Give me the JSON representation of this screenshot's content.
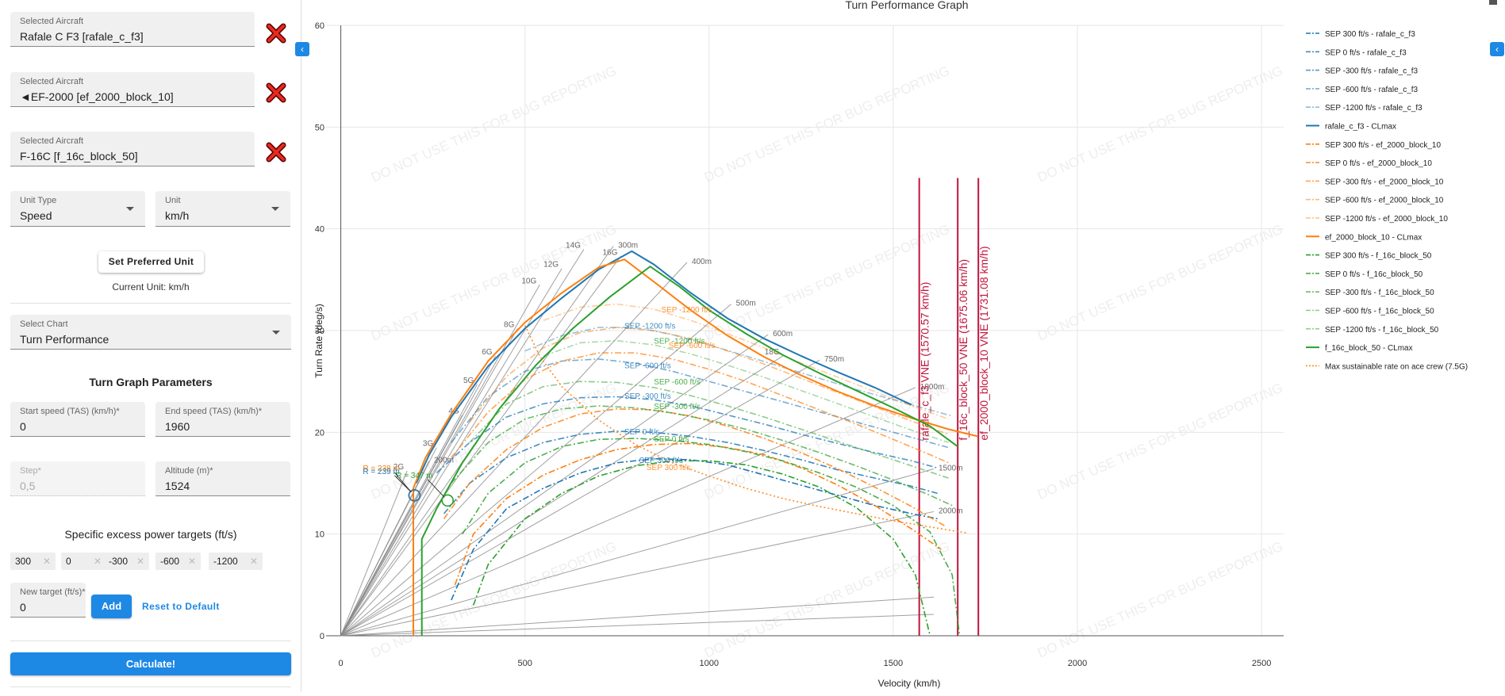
{
  "sidebar": {
    "aircraft": [
      {
        "label": "Selected Aircraft",
        "value": "Rafale C F3 [rafale_c_f3]"
      },
      {
        "label": "Selected Aircraft",
        "value": "◄EF-2000 [ef_2000_block_10]"
      },
      {
        "label": "Selected Aircraft",
        "value": "F-16C [f_16c_block_50]"
      }
    ],
    "unit_type": {
      "label": "Unit Type",
      "value": "Speed"
    },
    "unit": {
      "label": "Unit",
      "value": "km/h"
    },
    "set_preferred_label": "Set Preferred Unit",
    "current_unit": "Current Unit: km/h",
    "select_chart": {
      "label": "Select Chart",
      "value": "Turn Performance"
    },
    "params_title": "Turn Graph Parameters",
    "start_speed": {
      "label": "Start speed (TAS) (km/h)*",
      "value": "0"
    },
    "end_speed": {
      "label": "End speed (TAS) (km/h)*",
      "value": "1960"
    },
    "step": {
      "label": "Step*",
      "value": "0,5"
    },
    "altitude": {
      "label": "Altitude (m)*",
      "value": "1524"
    },
    "sep_title": "Specific excess power targets (ft/s)",
    "sep_targets": [
      "300",
      "0",
      "-300",
      "-600",
      "-1200"
    ],
    "new_target": {
      "label": "New target (ft/s)*",
      "value": "0"
    },
    "add_label": "Add",
    "reset_label": "Reset to Default",
    "calculate_label": "Calculate!"
  },
  "chart_data": {
    "type": "line",
    "title": "Turn Performance Graph",
    "xlabel": "Velocity (km/h)",
    "ylabel": "Turn Rate (deg/s)",
    "xlim": [
      -40,
      2560
    ],
    "ylim": [
      0,
      60
    ],
    "x_ticks": [
      0,
      500,
      1000,
      1500,
      2000,
      2500
    ],
    "y_ticks": [
      0,
      10,
      20,
      30,
      40,
      50,
      60
    ],
    "grid": true,
    "legend_position": "right",
    "watermark": "DO NOT USE THIS FOR BUG REPORTING",
    "colors": {
      "rafale": "#1f77b4",
      "ef2000": "#ff7f0e",
      "f16": "#2ca02c",
      "vne": "#c0143c",
      "grid": "#888888"
    },
    "g_lines": [
      {
        "label": "2G",
        "end": [
          180,
          16.2
        ]
      },
      {
        "label": "3G",
        "end": [
          260,
          18.5
        ]
      },
      {
        "label": "4G",
        "end": [
          330,
          21.7
        ]
      },
      {
        "label": "5G",
        "end": [
          370,
          24.7
        ]
      },
      {
        "label": "6G",
        "end": [
          420,
          27.5
        ]
      },
      {
        "label": "8G",
        "end": [
          480,
          30.2
        ]
      },
      {
        "label": "10G",
        "end": [
          540,
          34.5
        ]
      },
      {
        "label": "12G",
        "end": [
          600,
          36.1
        ]
      },
      {
        "label": "14G",
        "end": [
          660,
          38.0
        ]
      },
      {
        "label": "16G",
        "end": [
          760,
          37.3
        ]
      },
      {
        "label": "18G",
        "end": [
          1200,
          27.5
        ]
      }
    ],
    "radius_lines": [
      {
        "label": "200m",
        "end": [
          240,
          17.2
        ]
      },
      {
        "label": "300m",
        "end": [
          740,
          38.3
        ]
      },
      {
        "label": "400m",
        "end": [
          940,
          36.7
        ]
      },
      {
        "label": "500m",
        "end": [
          1060,
          32.6
        ]
      },
      {
        "label": "600m",
        "end": [
          1160,
          29.6
        ]
      },
      {
        "label": "750m",
        "end": [
          1300,
          27.1
        ]
      },
      {
        "label": "1000m",
        "end": [
          1560,
          24.4
        ]
      },
      {
        "label": "1500m",
        "end": [
          1610,
          16.4
        ]
      },
      {
        "label": "2000m",
        "end": [
          1610,
          12.2
        ]
      }
    ],
    "extra_lines_end_y": [
      3.8,
      2.1
    ],
    "extra_lines_end_x": 1610,
    "series": [
      {
        "name": "SEP 300 ft/s - rafale_c_f3",
        "group": "rafale",
        "dash": "dashdot",
        "opacity": 1.0,
        "x": [
          300,
          360,
          450,
          550,
          650,
          750,
          850,
          950,
          1050,
          1150,
          1250,
          1350,
          1450,
          1550,
          1620
        ],
        "y": [
          3.5,
          8.5,
          12.5,
          14.5,
          16.0,
          17.0,
          17.4,
          17.3,
          16.8,
          15.8,
          14.8,
          13.8,
          12.8,
          12.0,
          11.5
        ]
      },
      {
        "name": "SEP 0 ft/s - rafale_c_f3",
        "group": "rafale",
        "dash": "dashdot",
        "opacity": 0.85,
        "x": [
          280,
          350,
          450,
          550,
          650,
          750,
          850,
          950,
          1050,
          1150,
          1250,
          1350,
          1450,
          1550,
          1620
        ],
        "y": [
          12.0,
          15.0,
          17.5,
          19.0,
          19.8,
          20.1,
          20.0,
          19.6,
          19.0,
          18.2,
          17.3,
          16.3,
          15.5,
          14.7,
          14.0
        ]
      },
      {
        "name": "SEP -300 ft/s - rafale_c_f3",
        "group": "rafale",
        "dash": "dashdot",
        "opacity": 0.75,
        "x": [
          260,
          350,
          450,
          550,
          650,
          750,
          850,
          950,
          1050,
          1150,
          1250,
          1350,
          1450,
          1550,
          1620
        ],
        "y": [
          16.0,
          19.0,
          21.5,
          22.8,
          23.4,
          23.5,
          23.2,
          22.6,
          21.7,
          20.8,
          19.8,
          18.9,
          18.0,
          17.2,
          16.5
        ]
      },
      {
        "name": "SEP -600 ft/s - rafale_c_f3",
        "group": "rafale",
        "dash": "dashdot",
        "opacity": 0.6,
        "x": [
          300,
          400,
          500,
          600,
          700,
          800,
          900,
          1000,
          1100,
          1200,
          1300,
          1400,
          1500,
          1600,
          1650
        ],
        "y": [
          19.0,
          23.5,
          26.0,
          27.0,
          27.2,
          26.8,
          26.0,
          25.0,
          24.0,
          23.0,
          22.0,
          21.0,
          20.0,
          19.0,
          18.5
        ]
      },
      {
        "name": "SEP -1200 ft/s - rafale_c_f3",
        "group": "rafale",
        "dash": "dashdot",
        "opacity": 0.45,
        "x": [
          500,
          600,
          700,
          800,
          900,
          1000,
          1100,
          1200,
          1300,
          1400,
          1500,
          1600,
          1660
        ],
        "y": [
          28.0,
          29.5,
          30.3,
          30.3,
          29.6,
          28.6,
          27.5,
          26.4,
          25.3,
          24.2,
          23.2,
          22.2,
          21.6
        ]
      },
      {
        "name": "rafale_c_f3 - CLmax",
        "group": "rafale",
        "dash": "solid",
        "opacity": 1.0,
        "x": [
          205,
          240,
          300,
          400,
          500,
          600,
          700,
          790,
          850,
          950,
          1050,
          1150,
          1250,
          1350,
          1450,
          1550
        ],
        "y": [
          15.0,
          17.8,
          21.5,
          26.5,
          30.2,
          33.2,
          36.0,
          37.8,
          36.5,
          33.7,
          31.2,
          29.2,
          27.5,
          25.9,
          24.4,
          22.7
        ]
      },
      {
        "name": "SEP 300 ft/s - ef_2000_block_10",
        "group": "ef2000",
        "dash": "dashdot",
        "opacity": 1.0,
        "x": [
          310,
          360,
          450,
          550,
          650,
          750,
          850,
          950,
          1050,
          1150,
          1250,
          1350,
          1450,
          1550,
          1630
        ],
        "y": [
          5.0,
          10.0,
          13.5,
          15.8,
          17.3,
          18.3,
          18.8,
          18.9,
          18.5,
          17.8,
          16.5,
          14.8,
          12.8,
          10.5,
          8.5
        ]
      },
      {
        "name": "SEP 0 ft/s - ef_2000_block_10",
        "group": "ef2000",
        "dash": "dashdot",
        "opacity": 0.85,
        "x": [
          280,
          350,
          450,
          550,
          650,
          750,
          850,
          950,
          1050,
          1150,
          1250,
          1350,
          1450,
          1550,
          1640
        ],
        "y": [
          11.5,
          15.0,
          18.3,
          20.5,
          21.8,
          22.3,
          22.2,
          21.6,
          20.6,
          19.4,
          18.0,
          16.4,
          14.6,
          12.7,
          10.8
        ]
      },
      {
        "name": "SEP -300 ft/s - ef_2000_block_10",
        "group": "ef2000",
        "dash": "dashdot",
        "opacity": 0.7,
        "x": [
          300,
          400,
          500,
          600,
          700,
          800,
          900,
          1000,
          1100,
          1200,
          1300,
          1400,
          1500,
          1600,
          1650
        ],
        "y": [
          17.5,
          22.0,
          25.2,
          27.0,
          27.8,
          27.8,
          27.2,
          26.2,
          25.0,
          23.6,
          22.2,
          20.8,
          19.3,
          17.8,
          17.0
        ]
      },
      {
        "name": "SEP -600 ft/s - ef_2000_block_10",
        "group": "ef2000",
        "dash": "dashdot",
        "opacity": 0.55,
        "x": [
          350,
          450,
          550,
          650,
          750,
          850,
          950,
          1050,
          1150,
          1250,
          1350,
          1450,
          1550,
          1650
        ],
        "y": [
          21.0,
          25.5,
          28.3,
          29.8,
          30.3,
          30.0,
          29.2,
          28.0,
          26.7,
          25.3,
          23.9,
          22.5,
          21.1,
          19.8
        ]
      },
      {
        "name": "SEP -1200 ft/s - ef_2000_block_10",
        "group": "ef2000",
        "dash": "dashdot",
        "opacity": 0.4,
        "x": [
          550,
          650,
          750,
          850,
          950,
          1050,
          1150,
          1250,
          1350,
          1450,
          1550,
          1650
        ],
        "y": [
          31.0,
          32.3,
          32.6,
          32.1,
          31.0,
          29.7,
          28.3,
          26.8,
          25.4,
          24.0,
          22.6,
          21.3
        ]
      },
      {
        "name": "ef_2000_block_10 - CLmax",
        "group": "ef2000",
        "dash": "solid",
        "opacity": 1.0,
        "x": [
          197,
          197,
          230,
          300,
          400,
          500,
          600,
          700,
          770,
          850,
          950,
          1050,
          1150,
          1250,
          1350,
          1450,
          1550,
          1650,
          1730
        ],
        "y": [
          0,
          14.5,
          17.5,
          21.8,
          27.0,
          30.8,
          33.7,
          36.2,
          37.0,
          34.8,
          32.0,
          29.5,
          27.4,
          25.6,
          24.0,
          22.6,
          21.4,
          20.3,
          19.6
        ]
      },
      {
        "name": "SEP 300 ft/s - f_16c_block_50",
        "group": "f16",
        "dash": "dashdot",
        "opacity": 1.0,
        "x": [
          360,
          400,
          500,
          600,
          700,
          800,
          900,
          1000,
          1100,
          1200,
          1300,
          1400,
          1500,
          1560,
          1600
        ],
        "y": [
          3.0,
          7.0,
          11.5,
          14.0,
          15.7,
          16.7,
          17.2,
          17.2,
          16.8,
          15.9,
          14.6,
          12.6,
          9.5,
          6.0,
          0
        ]
      },
      {
        "name": "SEP 0 ft/s - f_16c_block_50",
        "group": "f16",
        "dash": "dashdot",
        "opacity": 0.85,
        "x": [
          330,
          400,
          500,
          600,
          700,
          800,
          900,
          1000,
          1100,
          1200,
          1300,
          1400,
          1500,
          1600,
          1660,
          1680
        ],
        "y": [
          10.0,
          14.0,
          17.0,
          18.6,
          19.3,
          19.4,
          19.2,
          18.8,
          18.1,
          17.2,
          16.0,
          14.6,
          12.8,
          10.2,
          6.0,
          0
        ]
      },
      {
        "name": "SEP -300 ft/s - f_16c_block_50",
        "group": "f16",
        "dash": "dashdot",
        "opacity": 0.7,
        "x": [
          300,
          400,
          500,
          600,
          700,
          800,
          900,
          1000,
          1100,
          1200,
          1300,
          1400,
          1500,
          1600,
          1660
        ],
        "y": [
          15.0,
          19.0,
          21.3,
          22.3,
          22.6,
          22.4,
          21.9,
          21.2,
          20.3,
          19.2,
          18.0,
          16.7,
          15.3,
          13.8,
          12.8
        ]
      },
      {
        "name": "SEP -600 ft/s - f_16c_block_50",
        "group": "f16",
        "dash": "dashdot",
        "opacity": 0.55,
        "x": [
          350,
          450,
          550,
          650,
          750,
          850,
          950,
          1050,
          1150,
          1250,
          1350,
          1450,
          1550,
          1650
        ],
        "y": [
          19.0,
          22.8,
          24.5,
          25.0,
          24.9,
          24.4,
          23.6,
          22.6,
          21.5,
          20.3,
          19.1,
          17.9,
          16.7,
          15.5
        ]
      },
      {
        "name": "SEP -1200 ft/s - f_16c_block_50",
        "group": "f16",
        "dash": "dashdot",
        "opacity": 0.4,
        "x": [
          550,
          650,
          750,
          850,
          950,
          1050,
          1150,
          1250,
          1350,
          1450,
          1550,
          1650
        ],
        "y": [
          27.5,
          28.8,
          29.0,
          28.6,
          27.7,
          26.6,
          25.4,
          24.1,
          22.8,
          21.5,
          20.2,
          19.0
        ]
      },
      {
        "name": "f_16c_block_50 - CLmax",
        "group": "f16",
        "dash": "solid",
        "opacity": 1.0,
        "x": [
          220,
          220,
          260,
          330,
          430,
          530,
          630,
          730,
          840,
          920,
          1000,
          1100,
          1200,
          1300,
          1400,
          1500,
          1600,
          1675
        ],
        "y": [
          0,
          9.5,
          12.5,
          17.0,
          22.3,
          26.6,
          30.2,
          33.3,
          36.3,
          34.3,
          32.0,
          29.7,
          27.6,
          25.8,
          24.1,
          22.4,
          20.6,
          18.6
        ]
      },
      {
        "name": "Max sustainable rate on ace crew (7.5G)",
        "group": "ef2000",
        "dash": "dotted",
        "opacity": 0.9,
        "x": [
          500,
          540,
          600,
          700,
          800,
          900,
          1000,
          1100,
          1200,
          1300,
          1400,
          1500,
          1600,
          1700
        ],
        "y": [
          30.5,
          27.5,
          24.5,
          21.2,
          18.8,
          17.0,
          15.7,
          14.5,
          13.5,
          12.7,
          12.0,
          11.3,
          10.7,
          10.1
        ]
      }
    ],
    "sep_annotations": [
      {
        "text": "SEP 300 ft/s",
        "x": 810,
        "y": 17.0,
        "group": "rafale"
      },
      {
        "text": "SEP 300 ft/s",
        "x": 830,
        "y": 16.3,
        "group": "ef2000"
      },
      {
        "text": "SEP 0 ft/s",
        "x": 770,
        "y": 19.8,
        "group": "rafale"
      },
      {
        "text": "SEP 0 ft/s",
        "x": 850,
        "y": 19.1,
        "group": "f16"
      },
      {
        "text": "SEP -300 ft/s",
        "x": 770,
        "y": 23.3,
        "group": "rafale"
      },
      {
        "text": "SEP -300 ft/s",
        "x": 850,
        "y": 22.3,
        "group": "f16"
      },
      {
        "text": "SEP -600 ft/s",
        "x": 770,
        "y": 26.3,
        "group": "rafale"
      },
      {
        "text": "SEP -600 ft/s",
        "x": 850,
        "y": 24.7,
        "group": "f16"
      },
      {
        "text": "SEP -1200 ft/s",
        "x": 770,
        "y": 30.2,
        "group": "rafale"
      },
      {
        "text": "SEP -1200 ft/s",
        "x": 850,
        "y": 28.7,
        "group": "f16"
      },
      {
        "text": "SEP -1200 ft/s",
        "x": 870,
        "y": 31.8,
        "group": "ef2000"
      },
      {
        "text": "SEP -600 ft/s",
        "x": 890,
        "y": 28.3,
        "group": "ef2000"
      }
    ],
    "radius_annotations": [
      {
        "text": "R = 238 m",
        "x": 60,
        "y": 16.2,
        "group": "ef2000"
      },
      {
        "text": "R = 239 m",
        "x": 60,
        "y": 15.9,
        "group": "rafale"
      },
      {
        "text": "R = 347 m",
        "x": 150,
        "y": 15.5,
        "group": "f16"
      }
    ],
    "min_radius_markers": [
      {
        "x": 200,
        "y": 13.8,
        "group": "ef2000"
      },
      {
        "x": 200,
        "y": 13.8,
        "group": "rafale"
      },
      {
        "x": 290,
        "y": 13.3,
        "group": "f16"
      }
    ],
    "vne_lines": [
      {
        "x": 1570.57,
        "label": "rafale_c_f3 VNE (1570.57 km/h)"
      },
      {
        "x": 1675.06,
        "label": "f_16c_block_50 VNE (1675.06 km/h)"
      },
      {
        "x": 1731.08,
        "label": "ef_2000_block_10 VNE (1731.08 km/h)"
      }
    ],
    "vne_top": 45
  }
}
